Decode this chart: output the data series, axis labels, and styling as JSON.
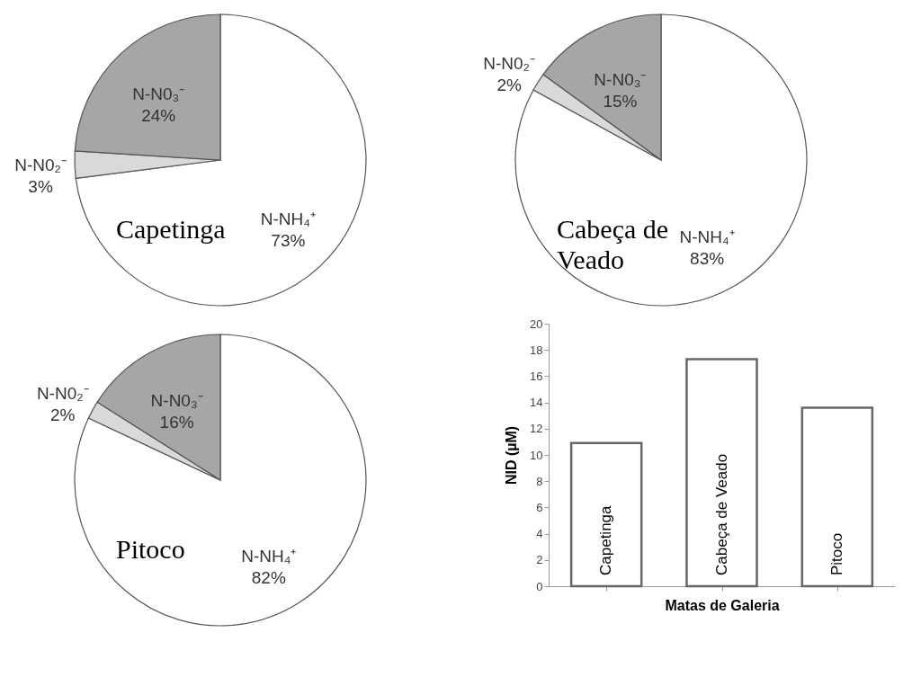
{
  "chart_data": [
    {
      "type": "pie",
      "title": "Capetinga",
      "categories": [
        "N-NH₄⁺",
        "N-N0₂⁻",
        "N-N0₃⁻"
      ],
      "values": [
        73,
        3,
        24
      ],
      "value_labels": [
        "73%",
        "3%",
        "24%"
      ],
      "colors": [
        "#ffffff",
        "#d9d9d9",
        "#a6a6a6"
      ],
      "legend": false
    },
    {
      "type": "pie",
      "title": "Cabeça de Veado",
      "categories": [
        "N-NH₄⁺",
        "N-N0₂⁻",
        "N-N0₃⁻"
      ],
      "values": [
        83,
        2,
        15
      ],
      "value_labels": [
        "83%",
        "2%",
        "15%"
      ],
      "colors": [
        "#ffffff",
        "#d9d9d9",
        "#a6a6a6"
      ],
      "legend": false
    },
    {
      "type": "pie",
      "title": "Pitoco",
      "categories": [
        "N-NH₄⁺",
        "N-N0₂⁻",
        "N-N0₃⁻"
      ],
      "values": [
        82,
        2,
        16
      ],
      "value_labels": [
        "82%",
        "2%",
        "16%"
      ],
      "colors": [
        "#ffffff",
        "#d9d9d9",
        "#a6a6a6"
      ],
      "legend": false
    },
    {
      "type": "bar",
      "categories": [
        "Capetinga",
        "Cabeça de Veado",
        "Pitoco"
      ],
      "values": [
        10.9,
        17.3,
        13.6
      ],
      "color": "#ffffff",
      "xlabel": "Matas de Galeria",
      "ylabel": "NID (µM)",
      "ylim": [
        0,
        20
      ],
      "yticks": [
        0,
        2,
        4,
        6,
        8,
        10,
        12,
        14,
        16,
        18,
        20
      ],
      "grid": false
    }
  ]
}
